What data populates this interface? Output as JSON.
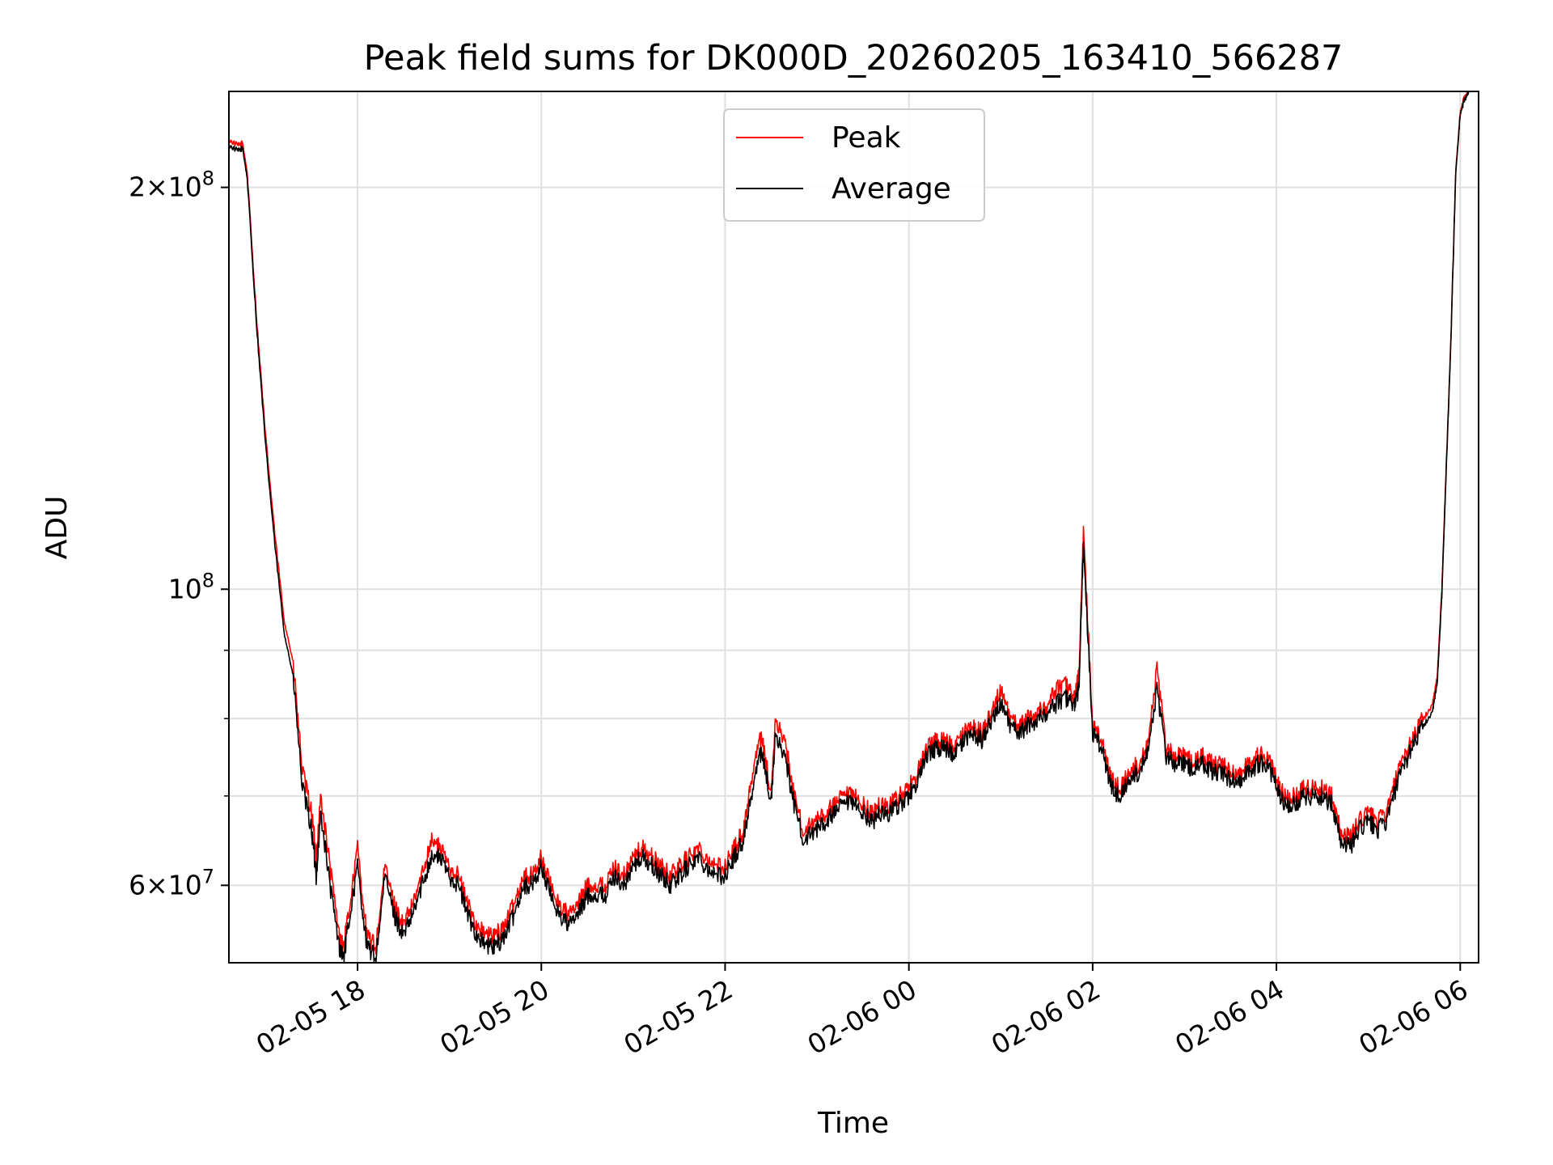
{
  "chart_data": {
    "type": "line",
    "title": "Peak field sums for DK000D_20260205_163410_566287",
    "xlabel": "Time",
    "ylabel": "ADU",
    "yscale": "log",
    "ylim": [
      52500000,
      236000000
    ],
    "xlim_hours": [
      16.6,
      30.2
    ],
    "grid": true,
    "legend_position": "upper-center",
    "colors": {
      "Peak": "#ff0000",
      "Average": "#000000",
      "grid": "#e0e0e0"
    },
    "x_ticks": [
      {
        "hour": 18,
        "label": "02-05 18"
      },
      {
        "hour": 20,
        "label": "02-05 20"
      },
      {
        "hour": 22,
        "label": "02-05 22"
      },
      {
        "hour": 24,
        "label": "02-06 00"
      },
      {
        "hour": 26,
        "label": "02-06 02"
      },
      {
        "hour": 28,
        "label": "02-06 04"
      },
      {
        "hour": 30,
        "label": "02-06 06"
      }
    ],
    "y_major_ticks": [
      {
        "value": 200000000,
        "mantissa": "2",
        "exponent": "8"
      },
      {
        "value": 100000000,
        "mantissa": "",
        "exponent": "8"
      },
      {
        "value": 60000000,
        "mantissa": "6",
        "exponent": "7"
      }
    ],
    "y_minor_gridlines": [
      70000000,
      80000000,
      90000000
    ],
    "x_hours": [
      16.6,
      16.7,
      16.75,
      16.8,
      16.9,
      17.0,
      17.1,
      17.2,
      17.3,
      17.4,
      17.5,
      17.55,
      17.6,
      17.7,
      17.8,
      17.85,
      17.9,
      18.0,
      18.1,
      18.2,
      18.3,
      18.4,
      18.5,
      18.6,
      18.7,
      18.8,
      18.9,
      19.0,
      19.1,
      19.2,
      19.3,
      19.4,
      19.5,
      19.6,
      19.7,
      19.8,
      19.9,
      20.0,
      20.1,
      20.2,
      20.3,
      20.4,
      20.5,
      20.6,
      20.7,
      20.8,
      20.9,
      21.0,
      21.1,
      21.2,
      21.3,
      21.4,
      21.5,
      21.6,
      21.7,
      21.8,
      21.9,
      22.0,
      22.1,
      22.2,
      22.3,
      22.4,
      22.5,
      22.55,
      22.65,
      22.75,
      22.85,
      23.0,
      23.1,
      23.2,
      23.3,
      23.4,
      23.5,
      23.6,
      23.7,
      23.8,
      23.9,
      24.0,
      24.1,
      24.2,
      24.3,
      24.4,
      24.5,
      24.6,
      24.7,
      24.8,
      24.9,
      25.0,
      25.1,
      25.2,
      25.3,
      25.4,
      25.5,
      25.6,
      25.7,
      25.8,
      25.85,
      25.9,
      26.0,
      26.1,
      26.2,
      26.3,
      26.4,
      26.5,
      26.6,
      26.7,
      26.8,
      26.9,
      27.0,
      27.1,
      27.2,
      27.3,
      27.4,
      27.5,
      27.6,
      27.7,
      27.8,
      27.9,
      28.0,
      28.1,
      28.2,
      28.3,
      28.4,
      28.5,
      28.6,
      28.7,
      28.8,
      28.9,
      29.0,
      29.1,
      29.2,
      29.3,
      29.4,
      29.5,
      29.6,
      29.7,
      29.75,
      29.8,
      29.85,
      29.9,
      29.95,
      30.0,
      30.05,
      30.1,
      30.2
    ],
    "series": [
      {
        "name": "Peak",
        "values": [
          217000000,
          215000000,
          216000000,
          205000000,
          160000000,
          130000000,
          110000000,
          95000000,
          88000000,
          73000000,
          68000000,
          63000000,
          70000000,
          62000000,
          55000000,
          54000000,
          57000000,
          64000000,
          55000000,
          54000000,
          62000000,
          58000000,
          56000000,
          58000000,
          61000000,
          65000000,
          64000000,
          62000000,
          61000000,
          58000000,
          56000000,
          55000000,
          55000000,
          56000000,
          58000000,
          61000000,
          61000000,
          63000000,
          60000000,
          58000000,
          57000000,
          58000000,
          60000000,
          60000000,
          60000000,
          62000000,
          61000000,
          63000000,
          64000000,
          63000000,
          62000000,
          61000000,
          62000000,
          63000000,
          64000000,
          63000000,
          62000000,
          62000000,
          64000000,
          66000000,
          73000000,
          78000000,
          70000000,
          80000000,
          77000000,
          70000000,
          66000000,
          67000000,
          68000000,
          69000000,
          70000000,
          70000000,
          69000000,
          68000000,
          69000000,
          69000000,
          70000000,
          71000000,
          73000000,
          76000000,
          77000000,
          77000000,
          76000000,
          78000000,
          79000000,
          78000000,
          81000000,
          84000000,
          80000000,
          79000000,
          80000000,
          81000000,
          82000000,
          84000000,
          85000000,
          83000000,
          86000000,
          111000000,
          79000000,
          77000000,
          72000000,
          71000000,
          73000000,
          74000000,
          77000000,
          87000000,
          76000000,
          75000000,
          75000000,
          74000000,
          75000000,
          74000000,
          74000000,
          73000000,
          73000000,
          74000000,
          75000000,
          75000000,
          72000000,
          70000000,
          70000000,
          71000000,
          71000000,
          71000000,
          70000000,
          66000000,
          65000000,
          67000000,
          68000000,
          67000000,
          68000000,
          72000000,
          75000000,
          78000000,
          80000000,
          82000000,
          86000000,
          100000000,
          125000000,
          155000000,
          205000000,
          228000000,
          234000000,
          236000000
        ]
      },
      {
        "name": "Average",
        "values": [
          215000000,
          213000000,
          214000000,
          203000000,
          158000000,
          128000000,
          108000000,
          93000000,
          86000000,
          71000000,
          66000000,
          61000000,
          68000000,
          60000000,
          54000000,
          53000000,
          56000000,
          62000000,
          54000000,
          53000000,
          61000000,
          57000000,
          55000000,
          57000000,
          60000000,
          63000000,
          63000000,
          61000000,
          60000000,
          57000000,
          55000000,
          54000000,
          54000000,
          55000000,
          57000000,
          60000000,
          60000000,
          62000000,
          59000000,
          57000000,
          56000000,
          57000000,
          59000000,
          59000000,
          59000000,
          61000000,
          60000000,
          62000000,
          63000000,
          62000000,
          61000000,
          60000000,
          61000000,
          62000000,
          63000000,
          62000000,
          61000000,
          61000000,
          63000000,
          65000000,
          71000000,
          76000000,
          69000000,
          78000000,
          75000000,
          69000000,
          65000000,
          66000000,
          67000000,
          68000000,
          69000000,
          69000000,
          68000000,
          67000000,
          68000000,
          68000000,
          69000000,
          70000000,
          72000000,
          75000000,
          76000000,
          76000000,
          75000000,
          77000000,
          78000000,
          77000000,
          80000000,
          82000000,
          79000000,
          78000000,
          79000000,
          80000000,
          81000000,
          82000000,
          83000000,
          82000000,
          84000000,
          108000000,
          78000000,
          76000000,
          71000000,
          70000000,
          72000000,
          73000000,
          76000000,
          84000000,
          75000000,
          74000000,
          74000000,
          73000000,
          74000000,
          73000000,
          73000000,
          72000000,
          72000000,
          73000000,
          74000000,
          74000000,
          71000000,
          69000000,
          69000000,
          70000000,
          70000000,
          70000000,
          69000000,
          65000000,
          64000000,
          66000000,
          67000000,
          66000000,
          67000000,
          71000000,
          74000000,
          77000000,
          79000000,
          81000000,
          85000000,
          99000000,
          124000000,
          154000000,
          204000000,
          227000000,
          233000000,
          236000000
        ]
      }
    ]
  }
}
